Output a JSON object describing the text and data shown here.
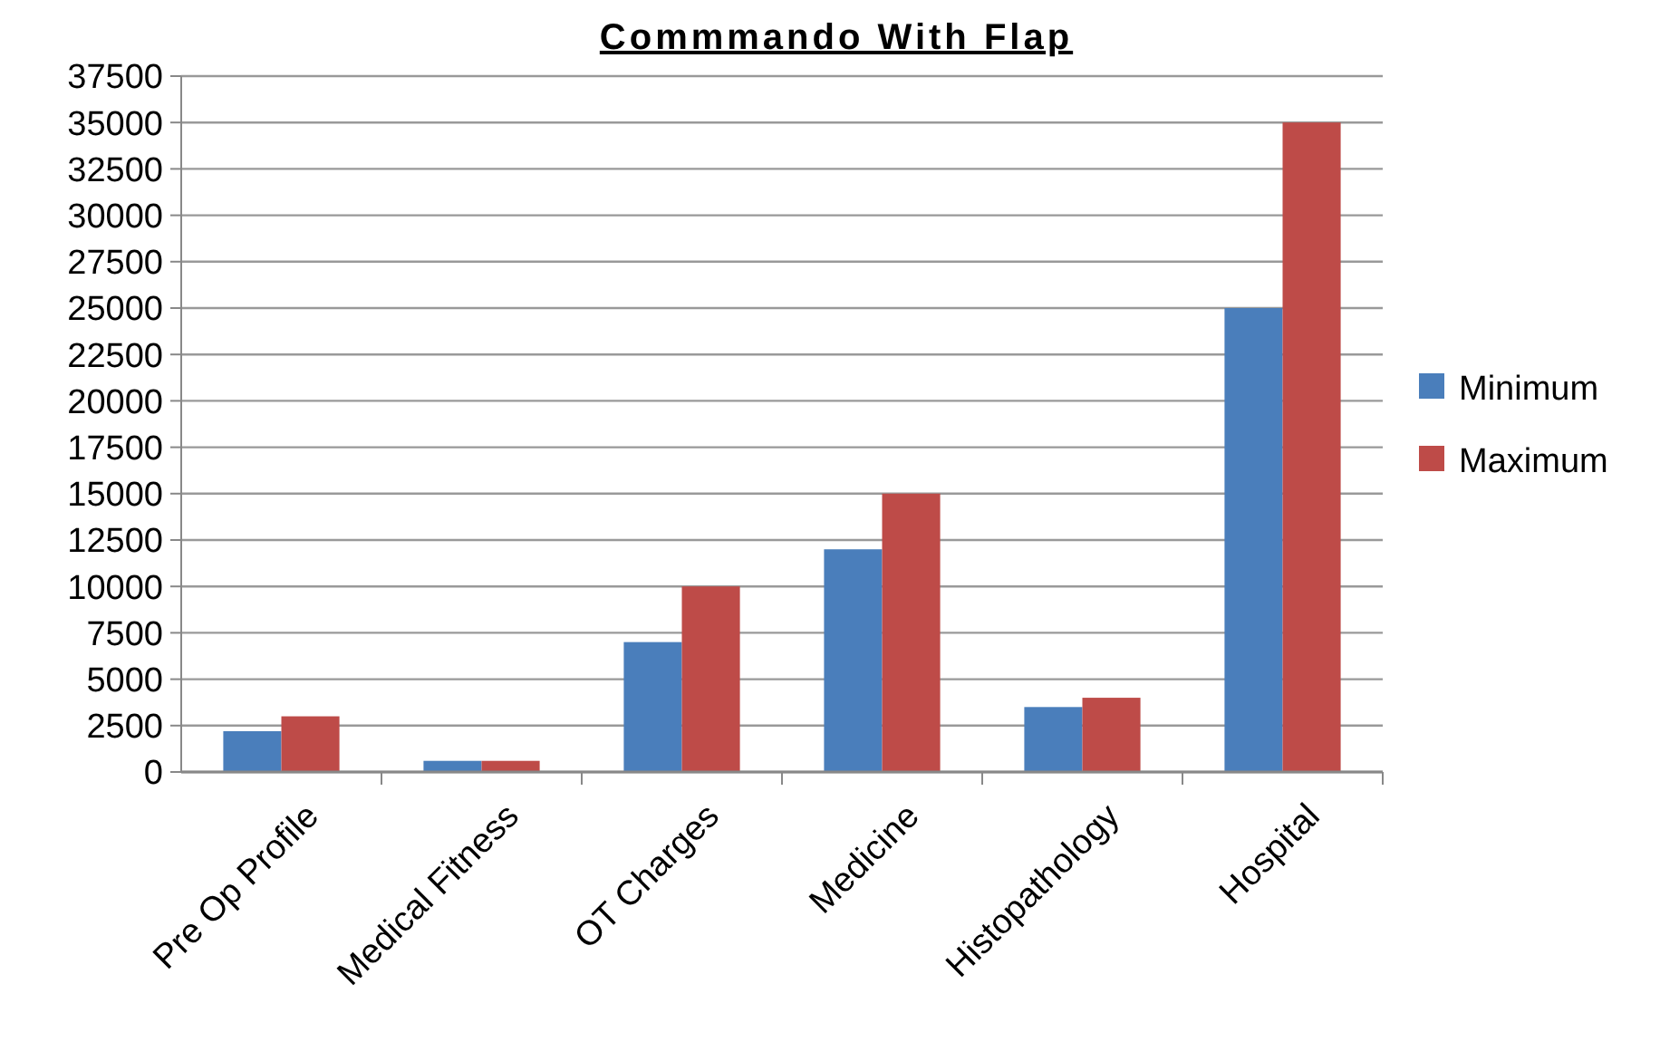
{
  "chart_data": {
    "type": "bar",
    "title": "Commmando With Flap",
    "categories": [
      "Pre Op Profile",
      "Medical Fitness",
      "OT Charges",
      "Medicine",
      "Histopathology",
      "Hospital"
    ],
    "series": [
      {
        "name": "Minimum",
        "color": "#4a7ebb",
        "values": [
          2200,
          600,
          7000,
          12000,
          3500,
          25000
        ]
      },
      {
        "name": "Maximum",
        "color": "#be4b48",
        "values": [
          3000,
          600,
          10000,
          15000,
          4000,
          35000
        ]
      }
    ],
    "ylim": [
      0,
      37500
    ],
    "yticks": [
      0,
      2500,
      5000,
      7500,
      10000,
      12500,
      15000,
      17500,
      20000,
      22500,
      25000,
      27500,
      30000,
      32500,
      35000,
      37500
    ],
    "grid": "y",
    "legend": "right"
  }
}
